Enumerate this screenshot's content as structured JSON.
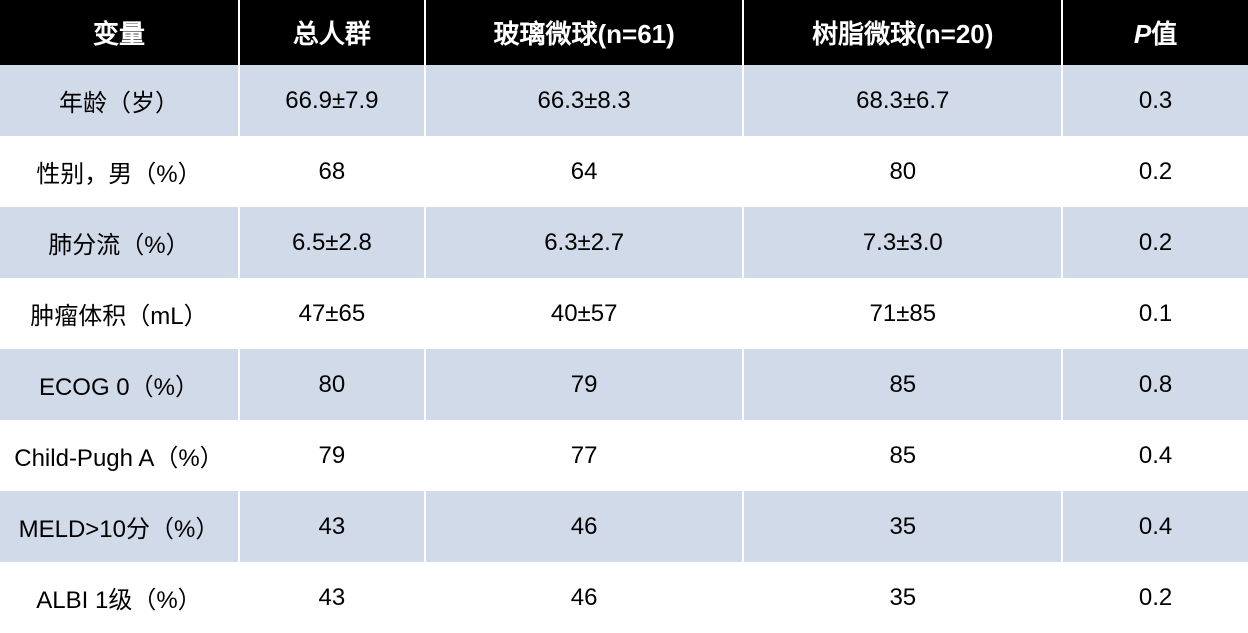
{
  "table": {
    "type": "table",
    "background_color": "#ffffff",
    "header_bg_color": "#000000",
    "header_text_color": "#ffffff",
    "row_odd_bg_color": "#d1dae8",
    "row_even_bg_color": "#ffffff",
    "border_color": "#ffffff",
    "header_fontsize": 26,
    "cell_fontsize": 24,
    "columns": [
      {
        "label": "变量",
        "width": "18%"
      },
      {
        "label": "总人群",
        "width": "14%"
      },
      {
        "label": "玻璃微球(n=61)",
        "width": "24%"
      },
      {
        "label": "树脂微球(n=20)",
        "width": "24%"
      },
      {
        "label_prefix": "P",
        "label_suffix": "值",
        "width": "14%",
        "prefix_italic": true
      }
    ],
    "rows": [
      {
        "cells": [
          "年龄（岁）",
          "66.9±7.9",
          "66.3±8.3",
          "68.3±6.7",
          "0.3"
        ]
      },
      {
        "cells": [
          "性别，男（%）",
          "68",
          "64",
          "80",
          "0.2"
        ]
      },
      {
        "cells": [
          "肺分流（%）",
          "6.5±2.8",
          "6.3±2.7",
          "7.3±3.0",
          "0.2"
        ]
      },
      {
        "cells": [
          "肿瘤体积（mL）",
          "47±65",
          "40±57",
          "71±85",
          "0.1"
        ]
      },
      {
        "cells": [
          "ECOG 0（%）",
          "80",
          "79",
          "85",
          "0.8"
        ]
      },
      {
        "cells": [
          "Child-Pugh A（%）",
          "79",
          "77",
          "85",
          "0.4"
        ]
      },
      {
        "cells": [
          "MELD>10分（%）",
          "43",
          "46",
          "35",
          "0.4"
        ]
      },
      {
        "cells": [
          "ALBI 1级（%）",
          "43",
          "46",
          "35",
          "0.2"
        ]
      }
    ]
  }
}
